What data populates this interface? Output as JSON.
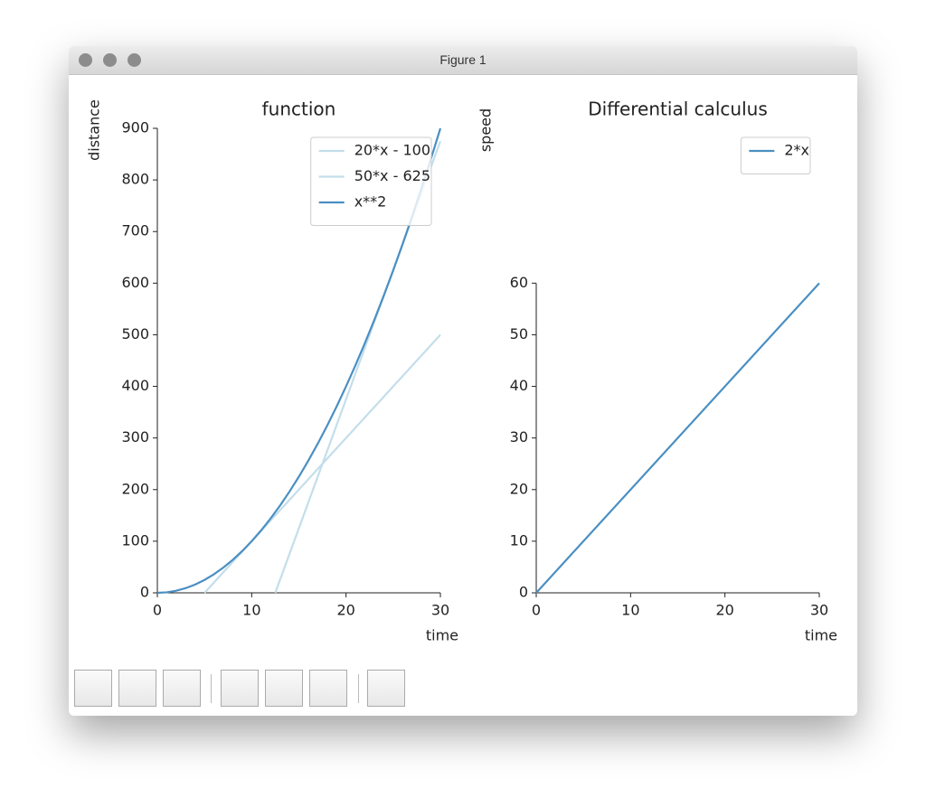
{
  "window": {
    "title": "Figure 1"
  },
  "chart_data": [
    {
      "type": "line",
      "title": "function",
      "xlabel": "time",
      "ylabel": "distance",
      "xlim": [
        0,
        30
      ],
      "ylim": [
        0,
        900
      ],
      "xticks": [
        0,
        10,
        20,
        30
      ],
      "yticks": [
        0,
        100,
        200,
        300,
        400,
        500,
        600,
        700,
        800,
        900
      ],
      "legend": "upper right",
      "series": [
        {
          "name": "20*x - 100",
          "color": "#c3deeb",
          "x": [
            5,
            30
          ],
          "values": [
            0,
            500
          ]
        },
        {
          "name": "50*x - 625",
          "color": "#c3deeb",
          "x": [
            12.5,
            30
          ],
          "values": [
            0,
            875
          ]
        },
        {
          "name": "x**2",
          "color": "#4b8fc2",
          "x": [
            0,
            1,
            2,
            3,
            4,
            5,
            6,
            7,
            8,
            9,
            10,
            11,
            12,
            13,
            14,
            15,
            16,
            17,
            18,
            19,
            20,
            21,
            22,
            23,
            24,
            25,
            26,
            27,
            28,
            29,
            30
          ],
          "values": [
            0,
            1,
            4,
            9,
            16,
            25,
            36,
            49,
            64,
            81,
            100,
            121,
            144,
            169,
            196,
            225,
            256,
            289,
            324,
            361,
            400,
            441,
            484,
            529,
            576,
            625,
            676,
            729,
            784,
            841,
            900
          ]
        }
      ]
    },
    {
      "type": "line",
      "title": "Differential calculus",
      "xlabel": "time",
      "ylabel": "speed",
      "xlim": [
        0,
        30
      ],
      "ylim": [
        0,
        90
      ],
      "xticks": [
        0,
        10,
        20,
        30
      ],
      "yticks": [
        0,
        10,
        20,
        30,
        40,
        50,
        60
      ],
      "legend": "upper right",
      "series": [
        {
          "name": "2*x",
          "color": "#4b8fc2",
          "x": [
            0,
            30
          ],
          "values": [
            0,
            60
          ]
        }
      ]
    }
  ]
}
